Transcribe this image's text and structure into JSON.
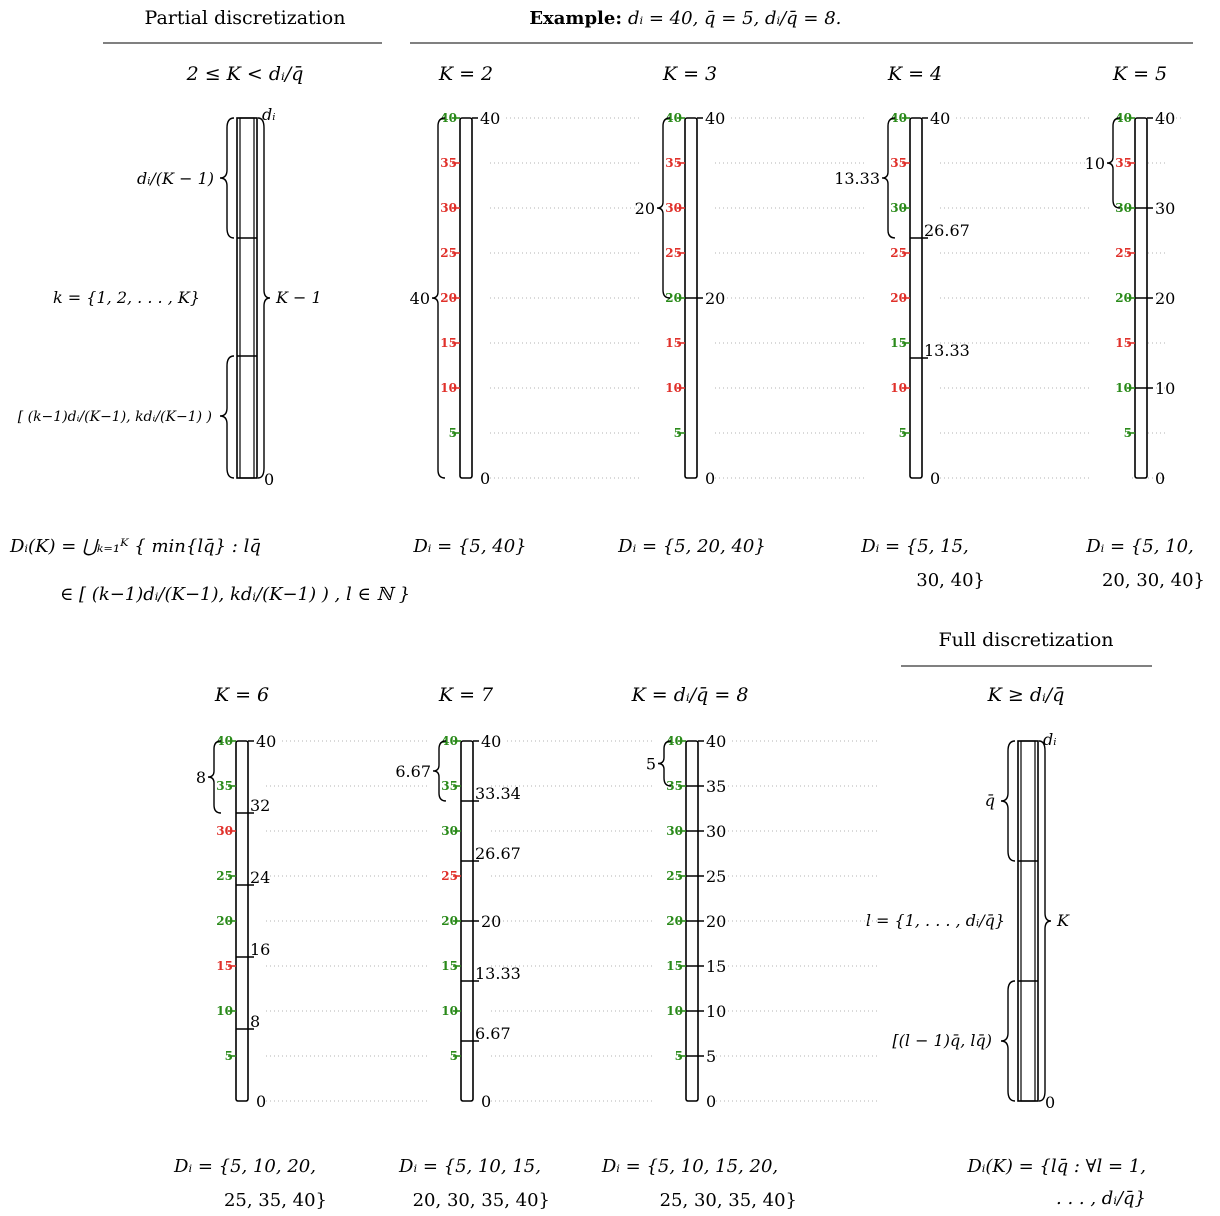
{
  "header": {
    "partial_title": "Partial discretization",
    "example_bold": "Example:",
    "example_rest": "dᵢ = 40,  q̄ = 5,  dᵢ/q̄ = 8.",
    "full_title": "Full discretization"
  },
  "colors": {
    "good": "#2a8a1a",
    "bad": "#e0302a",
    "dots": "#9a9a9a"
  },
  "schema_partial": {
    "condition": "2 ≤ K < dᵢ/q̄",
    "top_label": "dᵢ",
    "bottom_label": "0",
    "upper_brace_label": "dᵢ/(K − 1)",
    "middle_label": "k = {1, 2, . . . , K}",
    "right_brace_label": "K − 1",
    "interval_label": "[ (k−1)dᵢ/(K−1),  kdᵢ/(K−1) )",
    "formula_line1": "Dᵢ(K) = ⋃ₖ₌₁ᴷ { min{lq̄}  : lq̄",
    "formula_line2": "∈ [ (k−1)dᵢ/(K−1), kdᵢ/(K−1) ) ,  l ∈ ℕ }"
  },
  "schema_full": {
    "condition": "K ≥ dᵢ/q̄",
    "top_label": "dᵢ",
    "bottom_label": "0",
    "upper_brace_label": "q̄",
    "middle_label": "l = {1, . . . , dᵢ/q̄}",
    "right_brace_label": "K",
    "interval_label": "[(l − 1)q̄,  lq̄)",
    "formula_line1": "Dᵢ(K) = {lq̄ : ∀l = 1,",
    "formula_line2": ". . . , dᵢ/q̄}"
  },
  "examples": [
    {
      "k_label": "K = 2",
      "brace_label": "40",
      "brace_from": 0,
      "brace_to": 40,
      "ticks": [
        {
          "v": 40,
          "s": "g"
        },
        {
          "v": 35,
          "s": "r"
        },
        {
          "v": 30,
          "s": "r"
        },
        {
          "v": 25,
          "s": "r"
        },
        {
          "v": 20,
          "s": "r"
        },
        {
          "v": 15,
          "s": "r"
        },
        {
          "v": 10,
          "s": "r"
        },
        {
          "v": 5,
          "s": "g"
        }
      ],
      "boundaries": [
        {
          "v": 40,
          "t": "40"
        },
        {
          "v": 0,
          "t": "0"
        }
      ],
      "result_line1": "Dᵢ = {5, 40}",
      "result_line2": ""
    },
    {
      "k_label": "K = 3",
      "brace_label": "20",
      "brace_from": 20,
      "brace_to": 40,
      "ticks": [
        {
          "v": 40,
          "s": "g"
        },
        {
          "v": 35,
          "s": "r"
        },
        {
          "v": 30,
          "s": "r"
        },
        {
          "v": 25,
          "s": "r"
        },
        {
          "v": 20,
          "s": "g"
        },
        {
          "v": 15,
          "s": "r"
        },
        {
          "v": 10,
          "s": "r"
        },
        {
          "v": 5,
          "s": "g"
        }
      ],
      "boundaries": [
        {
          "v": 40,
          "t": "40"
        },
        {
          "v": 20,
          "t": "20"
        },
        {
          "v": 0,
          "t": "0"
        }
      ],
      "result_line1": "Dᵢ = {5, 20, 40}",
      "result_line2": ""
    },
    {
      "k_label": "K = 4",
      "brace_label": "13.33",
      "brace_from": 26.67,
      "brace_to": 40,
      "ticks": [
        {
          "v": 40,
          "s": "g"
        },
        {
          "v": 35,
          "s": "r"
        },
        {
          "v": 30,
          "s": "g"
        },
        {
          "v": 25,
          "s": "r"
        },
        {
          "v": 20,
          "s": "r"
        },
        {
          "v": 15,
          "s": "g"
        },
        {
          "v": 10,
          "s": "r"
        },
        {
          "v": 5,
          "s": "g"
        }
      ],
      "boundaries": [
        {
          "v": 40,
          "t": "40"
        },
        {
          "v": 26.67,
          "t": "26.67"
        },
        {
          "v": 13.33,
          "t": "13.33"
        },
        {
          "v": 0,
          "t": "0"
        }
      ],
      "result_line1": "Dᵢ = {5, 15,",
      "result_line2": "30, 40}"
    },
    {
      "k_label": "K = 5",
      "brace_label": "10",
      "brace_from": 30,
      "brace_to": 40,
      "ticks": [
        {
          "v": 40,
          "s": "g"
        },
        {
          "v": 35,
          "s": "r"
        },
        {
          "v": 30,
          "s": "g"
        },
        {
          "v": 25,
          "s": "r"
        },
        {
          "v": 20,
          "s": "g"
        },
        {
          "v": 15,
          "s": "r"
        },
        {
          "v": 10,
          "s": "g"
        },
        {
          "v": 5,
          "s": "g"
        }
      ],
      "boundaries": [
        {
          "v": 40,
          "t": "40"
        },
        {
          "v": 30,
          "t": "30"
        },
        {
          "v": 20,
          "t": "20"
        },
        {
          "v": 10,
          "t": "10"
        },
        {
          "v": 0,
          "t": "0"
        }
      ],
      "result_line1": "Dᵢ = {5, 10,",
      "result_line2": "20, 30, 40}"
    },
    {
      "k_label": "K = 6",
      "brace_label": "8",
      "brace_from": 32,
      "brace_to": 40,
      "ticks": [
        {
          "v": 40,
          "s": "g"
        },
        {
          "v": 35,
          "s": "g"
        },
        {
          "v": 30,
          "s": "r"
        },
        {
          "v": 25,
          "s": "g"
        },
        {
          "v": 20,
          "s": "g"
        },
        {
          "v": 15,
          "s": "r"
        },
        {
          "v": 10,
          "s": "g"
        },
        {
          "v": 5,
          "s": "g"
        }
      ],
      "boundaries": [
        {
          "v": 40,
          "t": "40"
        },
        {
          "v": 32,
          "t": "32"
        },
        {
          "v": 24,
          "t": "24"
        },
        {
          "v": 16,
          "t": "16"
        },
        {
          "v": 8,
          "t": "8"
        },
        {
          "v": 0,
          "t": "0"
        }
      ],
      "result_line1": "Dᵢ = {5, 10, 20,",
      "result_line2": "25, 35, 40}"
    },
    {
      "k_label": "K = 7",
      "brace_label": "6.67",
      "brace_from": 33.34,
      "brace_to": 40,
      "ticks": [
        {
          "v": 40,
          "s": "g"
        },
        {
          "v": 35,
          "s": "g"
        },
        {
          "v": 30,
          "s": "g"
        },
        {
          "v": 25,
          "s": "r"
        },
        {
          "v": 20,
          "s": "g"
        },
        {
          "v": 15,
          "s": "g"
        },
        {
          "v": 10,
          "s": "g"
        },
        {
          "v": 5,
          "s": "g"
        }
      ],
      "boundaries": [
        {
          "v": 40,
          "t": "40"
        },
        {
          "v": 33.34,
          "t": "33.34"
        },
        {
          "v": 26.67,
          "t": "26.67"
        },
        {
          "v": 20,
          "t": "20"
        },
        {
          "v": 13.33,
          "t": "13.33"
        },
        {
          "v": 6.67,
          "t": "6.67"
        },
        {
          "v": 0,
          "t": "0"
        }
      ],
      "result_line1": "Dᵢ = {5, 10, 15,",
      "result_line2": "20, 30, 35, 40}"
    },
    {
      "k_label": "K = dᵢ/q̄ = 8",
      "brace_label": "5",
      "brace_from": 35,
      "brace_to": 40,
      "ticks": [
        {
          "v": 40,
          "s": "g"
        },
        {
          "v": 35,
          "s": "g"
        },
        {
          "v": 30,
          "s": "g"
        },
        {
          "v": 25,
          "s": "g"
        },
        {
          "v": 20,
          "s": "g"
        },
        {
          "v": 15,
          "s": "g"
        },
        {
          "v": 10,
          "s": "g"
        },
        {
          "v": 5,
          "s": "g"
        }
      ],
      "boundaries": [
        {
          "v": 40,
          "t": "40"
        },
        {
          "v": 35,
          "t": "35"
        },
        {
          "v": 30,
          "t": "30"
        },
        {
          "v": 25,
          "t": "25"
        },
        {
          "v": 20,
          "t": "20"
        },
        {
          "v": 15,
          "t": "15"
        },
        {
          "v": 10,
          "t": "10"
        },
        {
          "v": 5,
          "t": "5"
        },
        {
          "v": 0,
          "t": "0"
        }
      ],
      "result_line1": "Dᵢ = {5, 10, 15, 20,",
      "result_line2": "25, 30, 35, 40}"
    }
  ]
}
